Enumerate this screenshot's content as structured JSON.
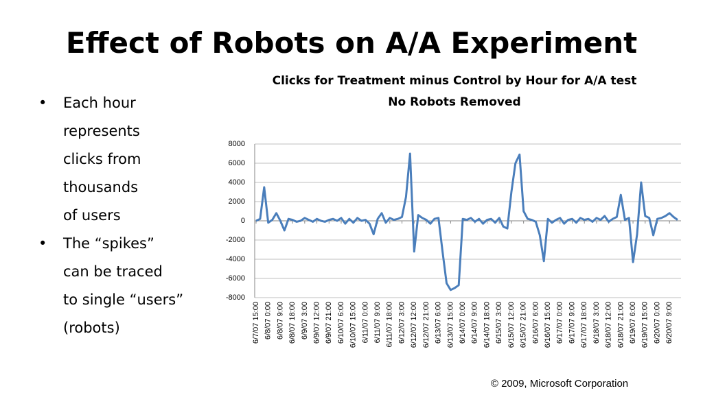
{
  "slide_title": "Effect of Robots on A/A Experiment",
  "bullets": [
    {
      "marker": "•",
      "lines": [
        "Each hour",
        "represents",
        "clicks from",
        "thousands",
        "of users"
      ]
    },
    {
      "marker": "•",
      "lines": [
        "The “spikes”",
        "can be traced",
        "to single “users”",
        "(robots)"
      ]
    }
  ],
  "footer": "© 2009, Microsoft Corporation",
  "chart_data": {
    "type": "line",
    "title": "Clicks for Treatment minus Control by Hour for A/A test",
    "subtitle": "No Robots Removed",
    "categories": [
      "6/7/07 15:00",
      null,
      null,
      "6/8/07 0:00",
      null,
      null,
      "6/8/07 9:00",
      null,
      null,
      "6/8/07 18:00",
      null,
      null,
      "6/9/07 3:00",
      null,
      null,
      "6/9/07 12:00",
      null,
      null,
      "6/9/07 21:00",
      null,
      null,
      "6/10/07 6:00",
      null,
      null,
      "6/10/07 15:00",
      null,
      null,
      "6/11/07 0:00",
      null,
      null,
      "6/11/07 9:00",
      null,
      null,
      "6/11/07 18:00",
      null,
      null,
      "6/12/07 3:00",
      null,
      null,
      "6/12/07 12:00",
      null,
      null,
      "6/12/07 21:00",
      null,
      null,
      "6/13/07 6:00",
      null,
      null,
      "6/13/07 15:00",
      null,
      null,
      "6/14/07 0:00",
      null,
      null,
      "6/14/07 9:00",
      null,
      null,
      "6/14/07 18:00",
      null,
      null,
      "6/15/07 3:00",
      null,
      null,
      "6/15/07 12:00",
      null,
      null,
      "6/15/07 21:00",
      null,
      null,
      "6/16/07 6:00",
      null,
      null,
      "6/16/07 15:00",
      null,
      null,
      "6/17/07 0:00",
      null,
      null,
      "6/17/07 9:00",
      null,
      null,
      "6/17/07 18:00",
      null,
      null,
      "6/18/07 3:00",
      null,
      null,
      "6/18/07 12:00",
      null,
      null,
      "6/18/07 21:00",
      null,
      null,
      "6/19/07 6:00",
      null,
      null,
      "6/19/07 15:00",
      null,
      null,
      "6/20/07 0:00",
      null,
      null,
      "6/20/07 9:00",
      null,
      null
    ],
    "values": [
      0,
      200,
      3500,
      -200,
      100,
      800,
      0,
      -1000,
      200,
      100,
      -100,
      0,
      300,
      100,
      -100,
      200,
      0,
      -100,
      100,
      200,
      0,
      300,
      -300,
      200,
      -200,
      300,
      0,
      100,
      -300,
      -1400,
      200,
      800,
      -200,
      300,
      100,
      200,
      400,
      2500,
      7000,
      -3200,
      600,
      300,
      100,
      -300,
      200,
      300,
      -3200,
      -6500,
      -7200,
      -7000,
      -6700,
      200,
      100,
      300,
      -100,
      200,
      -300,
      100,
      200,
      -200,
      300,
      -600,
      -800,
      3000,
      6000,
      6900,
      1000,
      200,
      100,
      -100,
      -1500,
      -4200,
      200,
      -200,
      100,
      300,
      -300,
      100,
      200,
      -200,
      300,
      100,
      200,
      -100,
      300,
      100,
      500,
      -100,
      200,
      400,
      2700,
      100,
      300,
      -4300,
      -1400,
      4000,
      500,
      300,
      -1500,
      200,
      300,
      500,
      800,
      400,
      100
    ],
    "color": "#4a7ebb",
    "ylim": [
      -8000,
      8000
    ],
    "yticks": [
      -8000,
      -6000,
      -4000,
      -2000,
      0,
      2000,
      4000,
      6000,
      8000
    ],
    "grid": true
  }
}
